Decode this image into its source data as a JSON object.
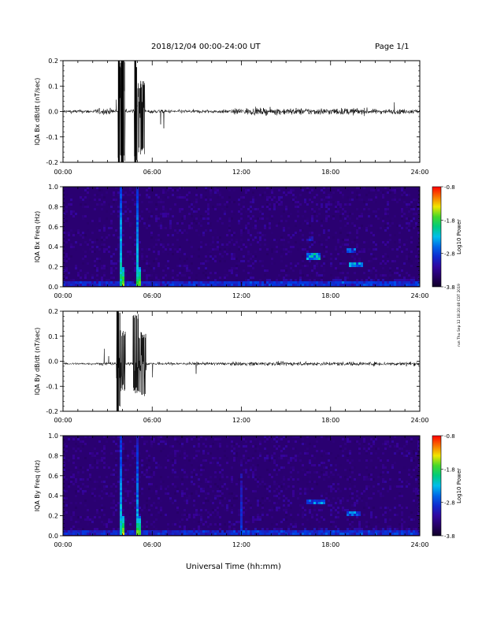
{
  "header": {
    "title": "2018/12/04  00:00-24:00 UT",
    "page": "Page 1/1"
  },
  "credit": "run Thu Sep 12 18:20:48 CDT 2019",
  "chart_data": [
    {
      "type": "line",
      "ylabel": "IQA Bx dB/dt (nT/sec)",
      "xlabel": "",
      "xlim_hours": [
        0,
        24
      ],
      "x_ticks": [
        "00:00",
        "06:00",
        "12:00",
        "18:00",
        "24:00"
      ],
      "ylim": [
        -0.2,
        0.2
      ],
      "y_ticks": [
        "0.2",
        "0.1",
        "0.0",
        "-0.1",
        "-0.2"
      ],
      "baseline": 0.0,
      "bursts": [
        {
          "start_hour": 3.7,
          "end_hour": 3.9,
          "min": -0.2,
          "max": 0.2
        },
        {
          "start_hour": 3.9,
          "end_hour": 4.2,
          "min": -0.2,
          "max": 0.2
        },
        {
          "start_hour": 4.8,
          "end_hour": 5.0,
          "min": -0.2,
          "max": 0.2
        },
        {
          "start_hour": 5.0,
          "end_hour": 5.5,
          "min": -0.17,
          "max": 0.12
        }
      ],
      "noise_amplitude": [
        {
          "start_hour": 0,
          "end_hour": 2.2,
          "amp": 0.012
        },
        {
          "start_hour": 2.2,
          "end_hour": 3.6,
          "amp": 0.02
        },
        {
          "start_hour": 5.6,
          "end_hour": 11.5,
          "amp": 0.012
        },
        {
          "start_hour": 11.5,
          "end_hour": 20.5,
          "amp": 0.022
        },
        {
          "start_hour": 20.5,
          "end_hour": 24,
          "amp": 0.016
        }
      ]
    },
    {
      "type": "heatmap",
      "ylabel": "IQA Bx Freq (Hz)",
      "xlabel": "",
      "xlim_hours": [
        0,
        24
      ],
      "x_ticks": [
        "00:00",
        "06:00",
        "12:00",
        "18:00",
        "24:00"
      ],
      "ylim": [
        0,
        1.0
      ],
      "y_ticks": [
        "1.0",
        "0.8",
        "0.6",
        "0.4",
        "0.2",
        "0.0"
      ],
      "colorbar": {
        "label": "Log10 Power",
        "min": -3.8,
        "max": -0.8,
        "ticks": [
          "-0.8",
          "-1.8",
          "-2.8",
          "-3.8"
        ]
      },
      "features": [
        {
          "hour": 3.85,
          "fmax": 1.0,
          "intensity": 0.55
        },
        {
          "hour": 4.05,
          "fmax": 0.2,
          "intensity": 0.75
        },
        {
          "hour": 4.95,
          "fmax": 1.0,
          "intensity": 0.5
        },
        {
          "hour": 5.1,
          "fmax": 0.2,
          "intensity": 0.7
        }
      ],
      "patches": [
        {
          "start_hour": 16.4,
          "end_hour": 17.4,
          "freq": 0.3,
          "intensity": 0.55
        },
        {
          "start_hour": 19.2,
          "end_hour": 20.2,
          "freq": 0.22,
          "intensity": 0.5
        },
        {
          "start_hour": 19.0,
          "end_hour": 19.7,
          "freq": 0.36,
          "intensity": 0.4
        },
        {
          "start_hour": 16.4,
          "end_hour": 16.9,
          "freq": 0.48,
          "intensity": 0.3
        }
      ]
    },
    {
      "type": "line",
      "ylabel": "IQA By dB/dt (nT/sec)",
      "xlabel": "",
      "xlim_hours": [
        0,
        24
      ],
      "x_ticks": [
        "00:00",
        "06:00",
        "12:00",
        "18:00",
        "24:00"
      ],
      "ylim": [
        -0.2,
        0.2
      ],
      "y_ticks": [
        "0.2",
        "0.1",
        "0.0",
        "-0.1",
        "-0.2"
      ],
      "baseline": -0.01,
      "bursts": [
        {
          "start_hour": 3.6,
          "end_hour": 3.85,
          "min": -0.2,
          "max": 0.2
        },
        {
          "start_hour": 3.85,
          "end_hour": 4.2,
          "min": -0.12,
          "max": 0.13
        },
        {
          "start_hour": 4.7,
          "end_hour": 5.1,
          "min": -0.13,
          "max": 0.19
        },
        {
          "start_hour": 5.1,
          "end_hour": 5.6,
          "min": -0.14,
          "max": 0.12
        }
      ],
      "noise_amplitude": [
        {
          "start_hour": 0,
          "end_hour": 2.5,
          "amp": 0.008
        },
        {
          "start_hour": 2.5,
          "end_hour": 3.5,
          "amp": 0.012
        },
        {
          "start_hour": 5.7,
          "end_hour": 11.5,
          "amp": 0.01
        },
        {
          "start_hour": 11.5,
          "end_hour": 24,
          "amp": 0.013
        }
      ]
    },
    {
      "type": "heatmap",
      "ylabel": "IQA By Freq (Hz)",
      "xlabel": "Universal Time (hh:mm)",
      "xlim_hours": [
        0,
        24
      ],
      "x_ticks": [
        "00:00",
        "06:00",
        "12:00",
        "18:00",
        "24:00"
      ],
      "ylim": [
        0,
        1.0
      ],
      "y_ticks": [
        "1.0",
        "0.8",
        "0.6",
        "0.4",
        "0.2",
        "0.0"
      ],
      "colorbar": {
        "label": "Log10 Power",
        "min": -3.8,
        "max": -0.8,
        "ticks": [
          "-0.8",
          "-1.8",
          "-2.8",
          "-3.8"
        ]
      },
      "features": [
        {
          "hour": 3.85,
          "fmax": 1.0,
          "intensity": 0.5
        },
        {
          "hour": 4.05,
          "fmax": 0.18,
          "intensity": 0.75
        },
        {
          "hour": 4.95,
          "fmax": 1.0,
          "intensity": 0.45
        },
        {
          "hour": 5.1,
          "fmax": 0.2,
          "intensity": 0.7
        },
        {
          "hour": 12.0,
          "fmax": 0.7,
          "intensity": 0.3
        }
      ],
      "patches": [
        {
          "start_hour": 16.3,
          "end_hour": 17.6,
          "freq": 0.33,
          "intensity": 0.45
        },
        {
          "start_hour": 19.1,
          "end_hour": 20.0,
          "freq": 0.22,
          "intensity": 0.45
        }
      ]
    }
  ]
}
